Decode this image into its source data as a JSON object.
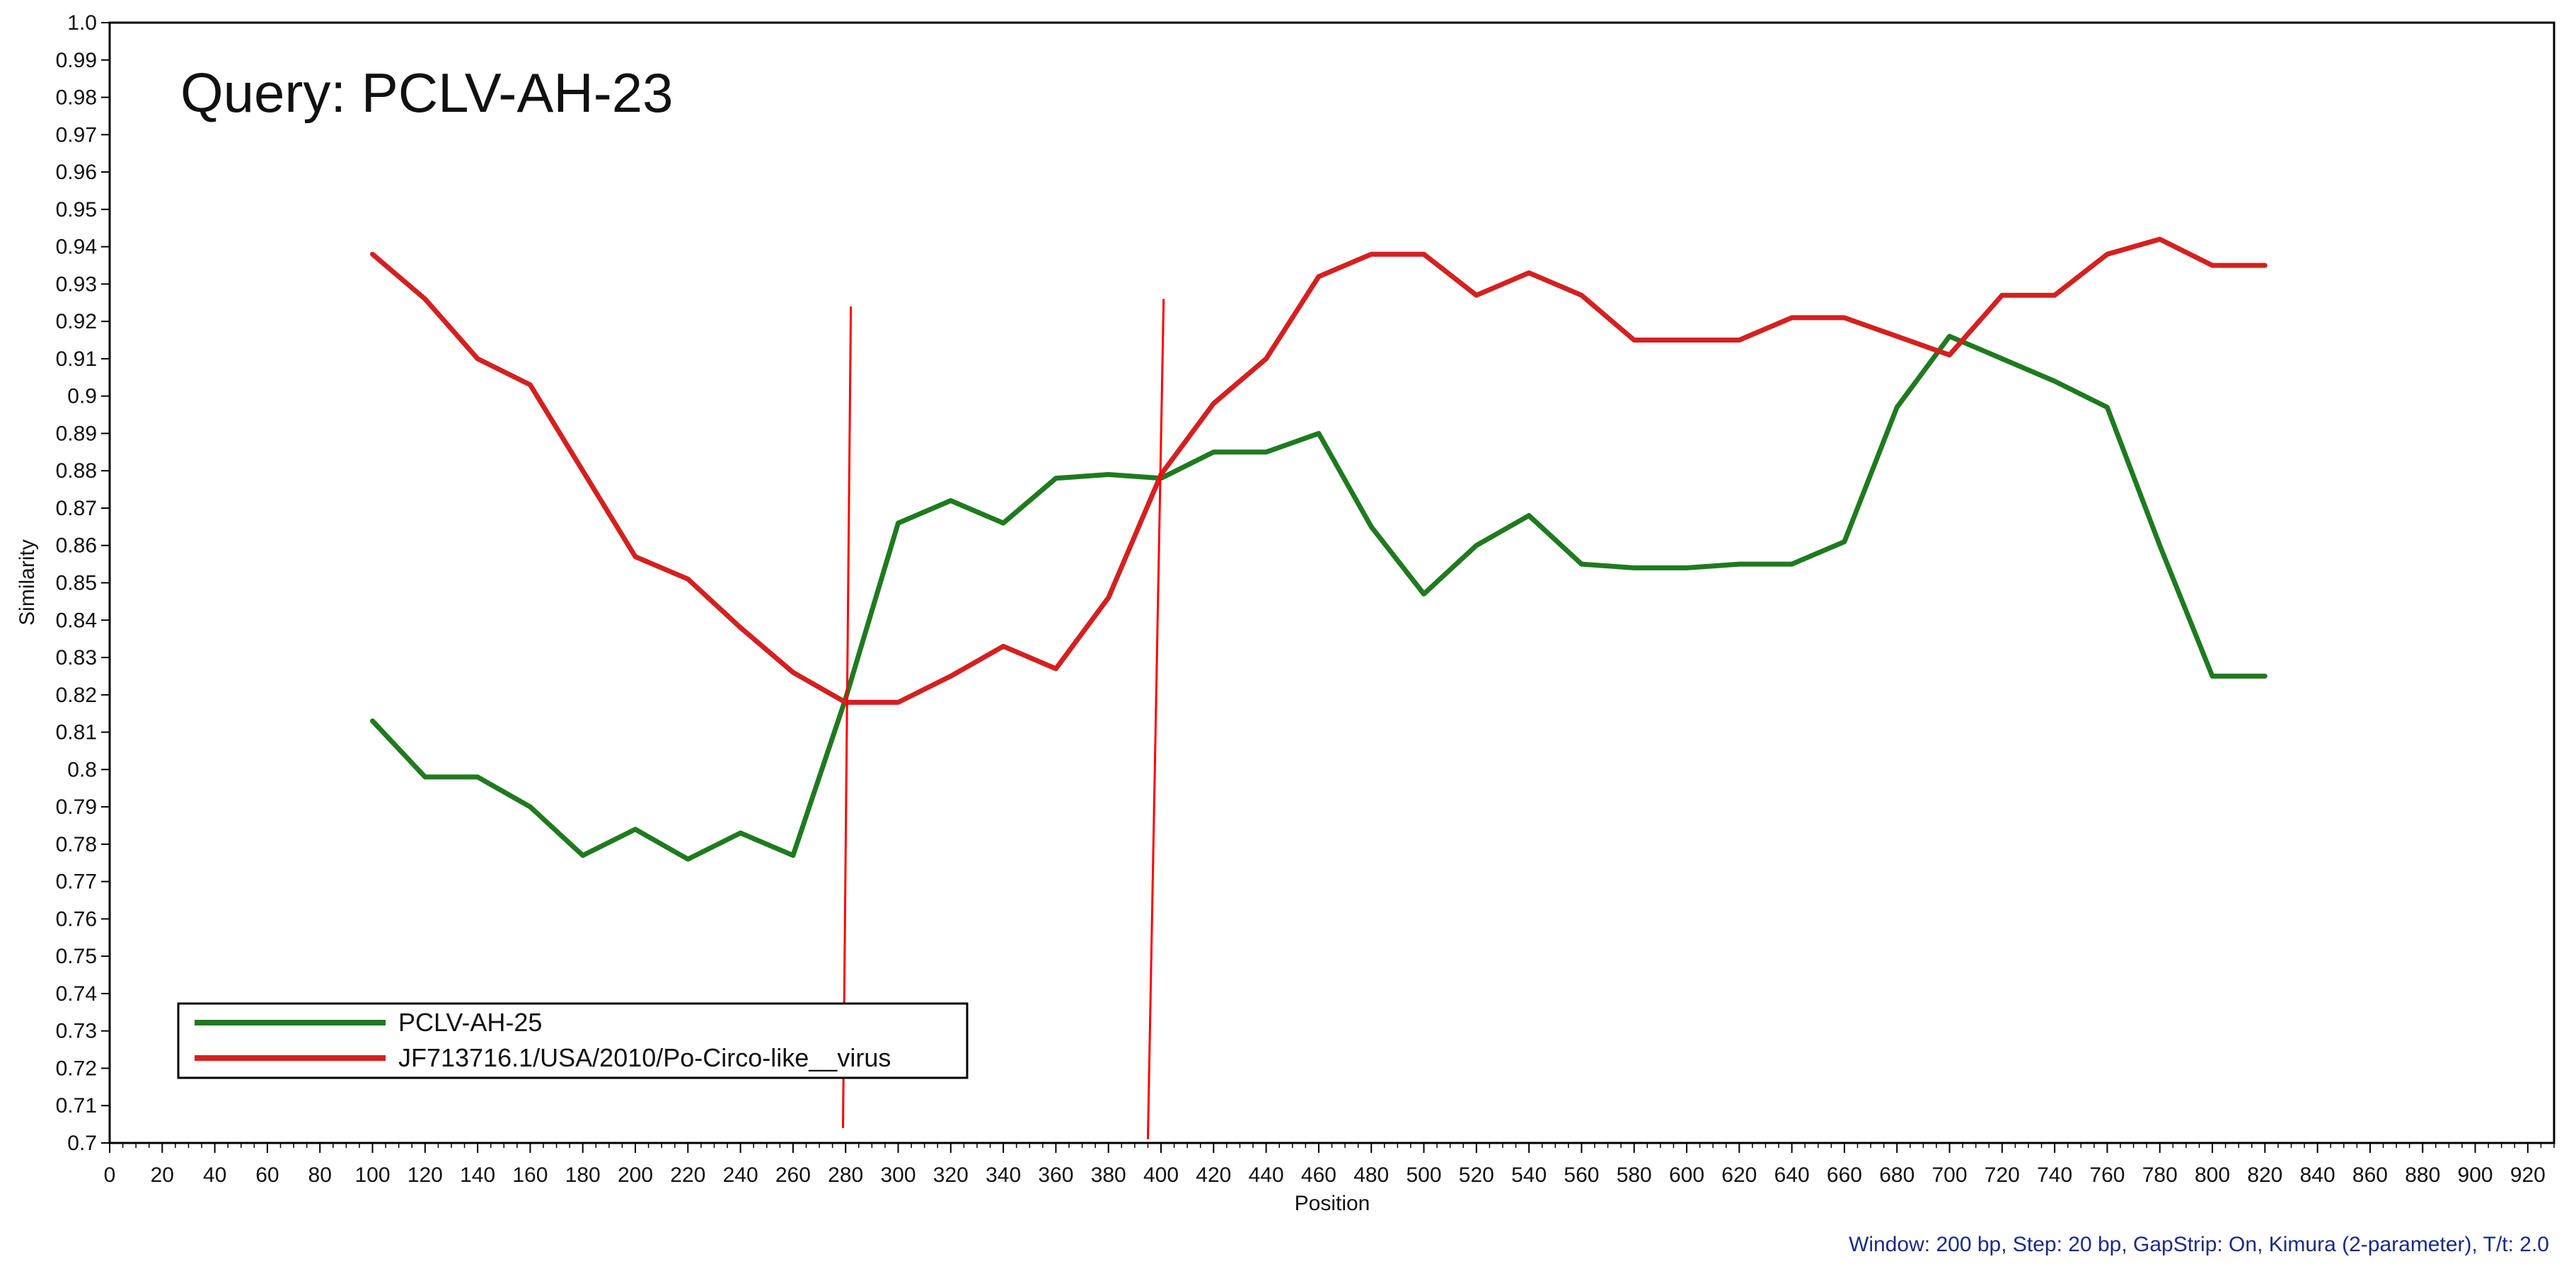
{
  "chart_data": {
    "type": "line",
    "title": "Query: PCLV-AH-23",
    "xlabel": "Position",
    "ylabel": "Similarity",
    "xlim": [
      0,
      930
    ],
    "ylim": [
      0.7,
      1.0
    ],
    "x_ticks": [
      0,
      20,
      40,
      60,
      80,
      100,
      120,
      140,
      160,
      180,
      200,
      220,
      240,
      260,
      280,
      300,
      320,
      340,
      360,
      380,
      400,
      420,
      440,
      460,
      480,
      500,
      520,
      540,
      560,
      580,
      600,
      620,
      640,
      660,
      680,
      700,
      720,
      740,
      760,
      780,
      800,
      820,
      840,
      860,
      880,
      900,
      920
    ],
    "y_ticks": [
      "0.7",
      "0.71",
      "0.72",
      "0.73",
      "0.74",
      "0.75",
      "0.76",
      "0.77",
      "0.78",
      "0.79",
      "0.8",
      "0.81",
      "0.82",
      "0.83",
      "0.84",
      "0.85",
      "0.86",
      "0.87",
      "0.88",
      "0.89",
      "0.9",
      "0.91",
      "0.92",
      "0.93",
      "0.94",
      "0.95",
      "0.96",
      "0.97",
      "0.98",
      "0.99",
      "1.0"
    ],
    "grid": false,
    "legend_position": "bottom-left",
    "series": [
      {
        "name": "PCLV-AH-25",
        "color": "#1f7a1f",
        "x": [
          100,
          120,
          140,
          160,
          180,
          200,
          220,
          240,
          260,
          280,
          300,
          320,
          340,
          360,
          380,
          400,
          420,
          440,
          460,
          480,
          500,
          520,
          540,
          560,
          580,
          600,
          620,
          640,
          660,
          680,
          700,
          720,
          740,
          760,
          780,
          800,
          820
        ],
        "y": [
          0.813,
          0.798,
          0.798,
          0.79,
          0.777,
          0.784,
          0.776,
          0.783,
          0.777,
          0.819,
          0.866,
          0.872,
          0.866,
          0.878,
          0.879,
          0.878,
          0.885,
          0.885,
          0.89,
          0.865,
          0.847,
          0.86,
          0.868,
          0.855,
          0.854,
          0.854,
          0.855,
          0.855,
          0.861,
          0.897,
          0.916,
          0.91,
          0.904,
          0.897,
          0.86,
          0.825,
          0.825
        ]
      },
      {
        "name": "JF713716.1/USA/2010/Po-Circo-like__virus",
        "color": "#d42020",
        "x": [
          100,
          120,
          140,
          160,
          180,
          200,
          220,
          240,
          260,
          280,
          300,
          320,
          340,
          360,
          380,
          400,
          420,
          440,
          460,
          480,
          500,
          520,
          540,
          560,
          580,
          600,
          620,
          640,
          660,
          680,
          700,
          720,
          740,
          760,
          780,
          800,
          820
        ],
        "y": [
          0.938,
          0.926,
          0.91,
          0.903,
          0.88,
          0.857,
          0.851,
          0.838,
          0.826,
          0.818,
          0.818,
          0.825,
          0.833,
          0.827,
          0.846,
          0.879,
          0.898,
          0.91,
          0.932,
          0.938,
          0.938,
          0.927,
          0.933,
          0.927,
          0.915,
          0.915,
          0.915,
          0.921,
          0.921,
          0.916,
          0.911,
          0.927,
          0.927,
          0.938,
          0.942,
          0.935,
          0.935
        ]
      }
    ],
    "annotations": [
      {
        "type": "marker-line",
        "color": "#ff0000",
        "x_top": 282,
        "y_top": 0.924,
        "x_bottom": 279,
        "y_bottom": 0.704
      },
      {
        "type": "marker-line",
        "color": "#ff0000",
        "x_top": 401,
        "y_top": 0.926,
        "x_bottom": 395,
        "y_bottom": 0.701
      }
    ],
    "footer_note": "Window: 200 bp, Step: 20 bp, GapStrip: On, Kimura (2-parameter), T/t: 2.0",
    "footer_color": "#1a2a8a"
  }
}
